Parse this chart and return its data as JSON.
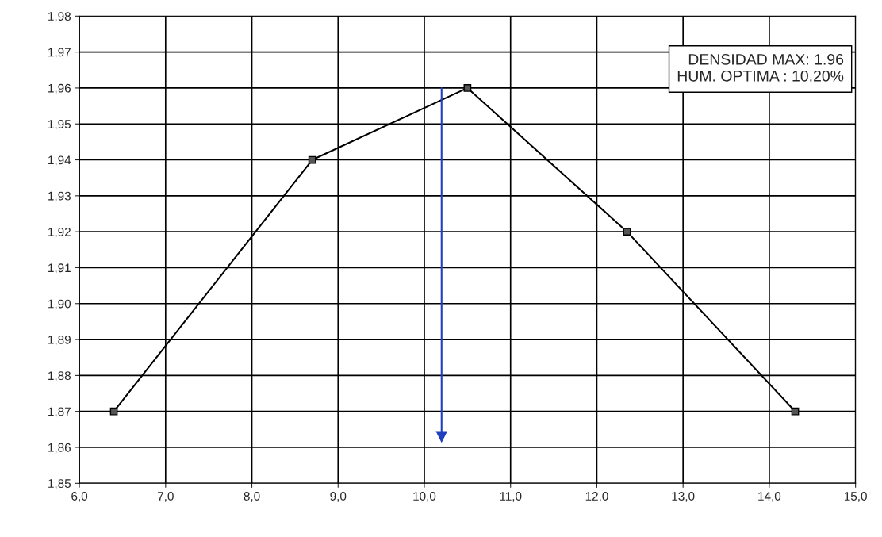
{
  "chart_data": {
    "type": "line",
    "x": [
      6.4,
      8.7,
      10.5,
      12.35,
      14.3
    ],
    "series": [
      {
        "color": "#000000",
        "values": [
          1.87,
          1.94,
          1.96,
          1.92,
          1.87
        ]
      }
    ],
    "marker": "square",
    "xlim": [
      6.0,
      15.0
    ],
    "xticks": [
      {
        "value": 6,
        "label": "6,0"
      },
      {
        "value": 7,
        "label": "7,0"
      },
      {
        "value": 8,
        "label": "8,0"
      },
      {
        "value": 9,
        "label": "9,0"
      },
      {
        "value": 10,
        "label": "10,0"
      },
      {
        "value": 11,
        "label": "11,0"
      },
      {
        "value": 12,
        "label": "12,0"
      },
      {
        "value": 13,
        "label": "13,0"
      },
      {
        "value": 14,
        "label": "14,0"
      },
      {
        "value": 15,
        "label": "15,0"
      }
    ],
    "ylim": [
      1.85,
      1.98
    ],
    "yticks": [
      {
        "value": 1.85,
        "label": "1,85"
      },
      {
        "value": 1.86,
        "label": "1,86"
      },
      {
        "value": 1.87,
        "label": "1,87"
      },
      {
        "value": 1.88,
        "label": "1,88"
      },
      {
        "value": 1.89,
        "label": "1,89"
      },
      {
        "value": 1.9,
        "label": "1,90"
      },
      {
        "value": 1.91,
        "label": "1,91"
      },
      {
        "value": 1.92,
        "label": "1,92"
      },
      {
        "value": 1.93,
        "label": "1,93"
      },
      {
        "value": 1.94,
        "label": "1,94"
      },
      {
        "value": 1.95,
        "label": "1,95"
      },
      {
        "value": 1.96,
        "label": "1,96"
      },
      {
        "value": 1.97,
        "label": "1,97"
      },
      {
        "value": 1.98,
        "label": "1,98"
      }
    ],
    "grid": true,
    "ref_lines": [
      {
        "axis": "x",
        "value": 10.2,
        "color": "#1f3fbf"
      }
    ],
    "annotations": [
      "DENSIDAD MAX: 1.96\nHUM. OPTIMA : 10.20%"
    ]
  }
}
